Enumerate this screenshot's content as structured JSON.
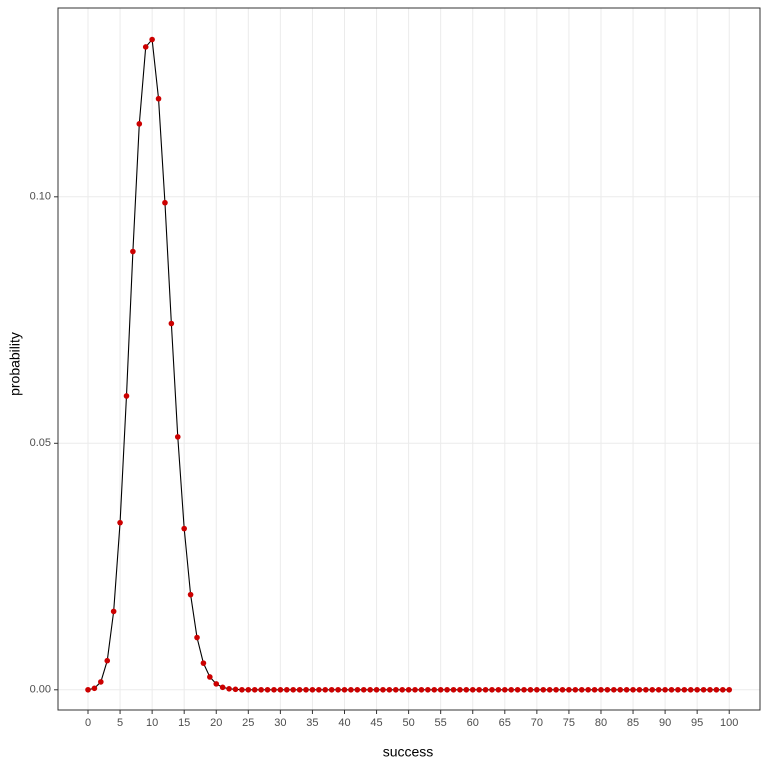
{
  "chart_data": {
    "type": "line-points",
    "x_label": "success",
    "y_label": "probability",
    "x": [
      0,
      1,
      2,
      3,
      4,
      5,
      6,
      7,
      8,
      9,
      10,
      11,
      12,
      13,
      14,
      15,
      16,
      17,
      18,
      19,
      20,
      21,
      22,
      23,
      24,
      25,
      26,
      27,
      28,
      29,
      30,
      31,
      32,
      33,
      34,
      35,
      36,
      37,
      38,
      39,
      40,
      41,
      42,
      43,
      44,
      45,
      46,
      47,
      48,
      49,
      50,
      51,
      52,
      53,
      54,
      55,
      56,
      57,
      58,
      59,
      60,
      61,
      62,
      63,
      64,
      65,
      66,
      67,
      68,
      69,
      70,
      71,
      72,
      73,
      74,
      75,
      76,
      77,
      78,
      79,
      80,
      81,
      82,
      83,
      84,
      85,
      86,
      87,
      88,
      89,
      90,
      91,
      92,
      93,
      94,
      95,
      96,
      97,
      98,
      99,
      100
    ],
    "values": [
      0.0,
      0.0003,
      0.0016,
      0.0059,
      0.0159,
      0.0339,
      0.0596,
      0.0889,
      0.1148,
      0.1304,
      0.1319,
      0.1199,
      0.0988,
      0.0743,
      0.0513,
      0.0327,
      0.0193,
      0.0106,
      0.0054,
      0.0026,
      0.0012,
      0.0005,
      0.0002,
      0.0001,
      0,
      0,
      0,
      0,
      0,
      0,
      0,
      0,
      0,
      0,
      0,
      0,
      0,
      0,
      0,
      0,
      0,
      0,
      0,
      0,
      0,
      0,
      0,
      0,
      0,
      0,
      0,
      0,
      0,
      0,
      0,
      0,
      0,
      0,
      0,
      0,
      0,
      0,
      0,
      0,
      0,
      0,
      0,
      0,
      0,
      0,
      0,
      0,
      0,
      0,
      0,
      0,
      0,
      0,
      0,
      0,
      0,
      0,
      0,
      0,
      0,
      0,
      0,
      0,
      0,
      0,
      0,
      0,
      0,
      0,
      0,
      0,
      0,
      0,
      0,
      0,
      0
    ],
    "line_color": "#000000",
    "point_color": "#cc0000",
    "xlim": [
      -4.68,
      104.8
    ],
    "ylim": [
      -0.0041,
      0.1383
    ],
    "xticks": [
      0,
      5,
      10,
      15,
      20,
      25,
      30,
      35,
      40,
      45,
      50,
      55,
      60,
      65,
      70,
      75,
      80,
      85,
      90,
      95,
      100
    ],
    "yticks": [
      {
        "value": 0,
        "label": "0.00"
      },
      {
        "value": 0.05,
        "label": "0.05"
      },
      {
        "value": 0.1,
        "label": "0.10"
      }
    ],
    "grid": true
  }
}
